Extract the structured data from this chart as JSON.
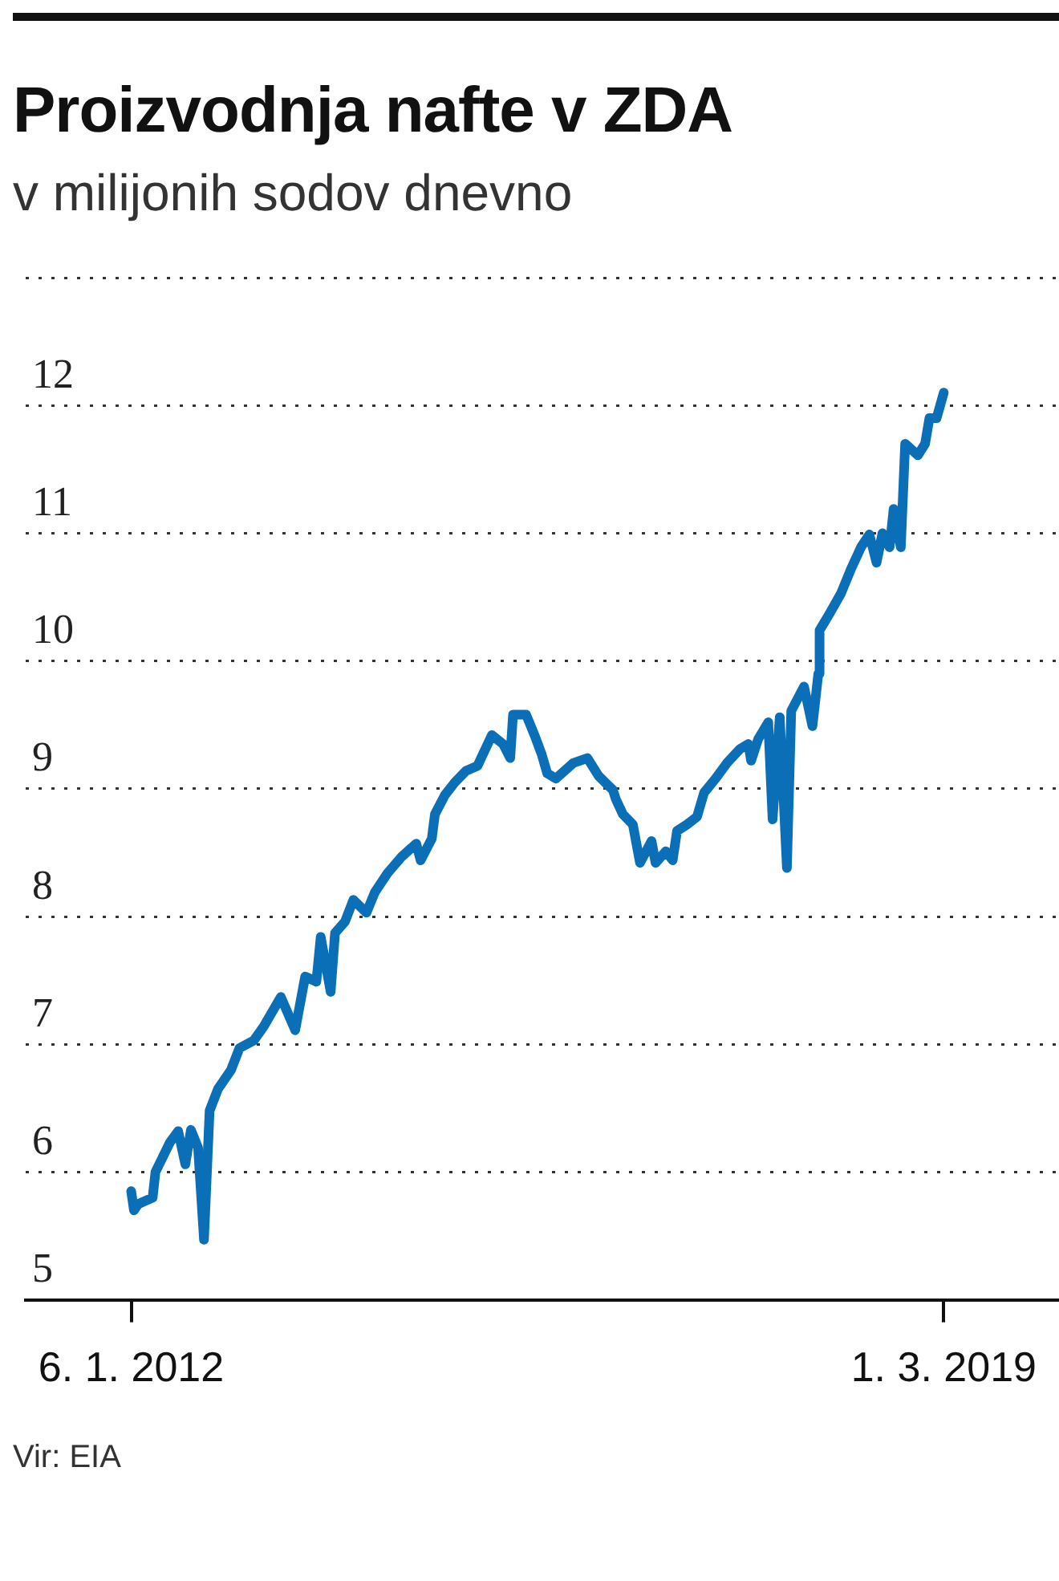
{
  "chart_data": {
    "type": "line",
    "title": "Proizvodnja nafte v ZDA",
    "subtitle": "v milijonih sodov dnevno",
    "annotations": [
      "Vir: EIA"
    ],
    "x": [
      "2012-01-06",
      "2012-01-15",
      "2012-01-29",
      "2012-03-15",
      "2012-03-24",
      "2012-05-09",
      "2012-06-05",
      "2012-06-28",
      "2012-07-16",
      "2012-08-08",
      "2012-08-27",
      "2012-09-14",
      "2012-10-11",
      "2012-11-22",
      "2012-12-19",
      "2013-02-03",
      "2013-03-07",
      "2013-05-01",
      "2013-06-16",
      "2013-07-18",
      "2013-08-23",
      "2013-09-06",
      "2013-10-08",
      "2013-10-22",
      "2013-11-23",
      "2013-12-20",
      "2014-01-31",
      "2014-02-27",
      "2014-04-09",
      "2014-05-25",
      "2014-07-10",
      "2014-07-24",
      "2014-08-29",
      "2014-09-08",
      "2014-10-10",
      "2014-11-11",
      "2014-12-17",
      "2015-01-23",
      "2015-03-10",
      "2015-04-15",
      "2015-05-08",
      "2015-05-17",
      "2015-06-28",
      "2015-07-25",
      "2015-08-17",
      "2015-09-04",
      "2015-10-02",
      "2015-11-26",
      "2016-01-11",
      "2016-02-16",
      "2016-04-02",
      "2016-04-11",
      "2016-05-04",
      "2016-06-05",
      "2016-06-28",
      "2016-08-04",
      "2016-08-17",
      "2016-09-19",
      "2016-10-11",
      "2016-10-25",
      "2016-11-26",
      "2016-12-28",
      "2017-01-20",
      "2017-02-26",
      "2017-04-03",
      "2017-05-15",
      "2017-06-11",
      "2017-06-20",
      "2017-07-13",
      "2017-08-14",
      "2017-08-28",
      "2017-09-20",
      "2017-10-13",
      "2017-10-27",
      "2017-12-07",
      "2018-01-03",
      "2018-01-22",
      "2018-01-26",
      "2018-02-27",
      "2018-04-05",
      "2018-05-07",
      "2018-06-08",
      "2018-07-05",
      "2018-07-28",
      "2018-08-16",
      "2018-09-08",
      "2018-09-21",
      "2018-10-14",
      "2018-10-28",
      "2018-12-08",
      "2018-12-31",
      "2019-01-14",
      "2019-02-06",
      "2019-03-01"
    ],
    "series": [
      {
        "color": "#0b6fb8",
        "values": [
          5.85,
          5.7,
          5.75,
          5.8,
          6.0,
          6.23,
          6.32,
          6.06,
          6.33,
          6.19,
          5.47,
          6.48,
          6.65,
          6.8,
          6.97,
          7.03,
          7.14,
          7.37,
          7.11,
          7.53,
          7.49,
          7.84,
          7.41,
          7.87,
          7.96,
          8.13,
          8.03,
          8.19,
          8.34,
          8.47,
          8.57,
          8.44,
          8.61,
          8.8,
          8.95,
          9.05,
          9.14,
          9.18,
          9.42,
          9.35,
          9.24,
          9.58,
          9.58,
          9.42,
          9.27,
          9.12,
          9.08,
          9.2,
          9.24,
          9.1,
          8.99,
          8.92,
          8.8,
          8.72,
          8.42,
          8.59,
          8.42,
          8.51,
          8.44,
          8.67,
          8.72,
          8.78,
          8.97,
          9.08,
          9.2,
          9.31,
          9.35,
          9.22,
          9.39,
          9.52,
          8.76,
          9.56,
          8.38,
          9.61,
          9.8,
          9.49,
          9.9,
          10.24,
          10.37,
          10.53,
          10.72,
          10.89,
          10.99,
          10.77,
          11.0,
          10.89,
          11.19,
          10.89,
          11.7,
          11.61,
          11.7,
          11.9,
          11.9,
          12.1
        ]
      }
    ],
    "xlim": [
      "2011-02-01",
      "2020-03-01"
    ],
    "xticks": [
      {
        "value": "2012-01-06",
        "label": "6. 1. 2012"
      },
      {
        "value": "2019-03-01",
        "label": "1. 3. 2019"
      }
    ],
    "ylim": [
      5,
      13
    ],
    "yticks": [
      5,
      6,
      7,
      8,
      9,
      10,
      11,
      12,
      {
        "value": 13,
        "label": null
      }
    ],
    "grid": "y",
    "legend": false,
    "marker": "none",
    "line_style": "solid"
  }
}
